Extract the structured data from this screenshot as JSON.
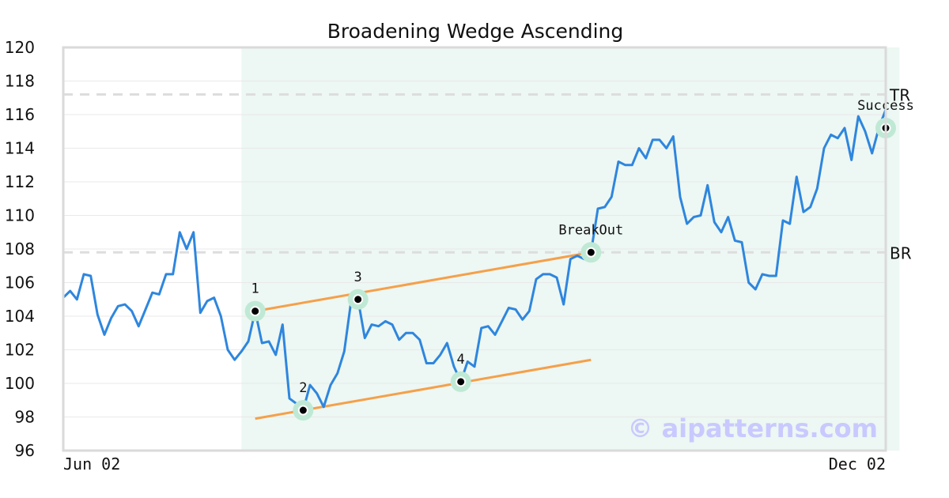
{
  "chart_data": {
    "type": "line",
    "title": "Broadening Wedge Ascending",
    "xlabel": "",
    "ylabel": "",
    "ylim": [
      96,
      120
    ],
    "yticks": [
      96,
      98,
      100,
      102,
      104,
      106,
      108,
      110,
      112,
      114,
      116,
      118,
      120
    ],
    "xtick_labels": [
      "Jun 02",
      "Dec 02"
    ],
    "grid": "horizontal",
    "colors": {
      "price": "#2e86de",
      "trendline": "#f5a04a",
      "highlight": "#edf7f3",
      "marker_halo": "#bfe9d5",
      "reference_line": "#dddddd",
      "watermark": "#c9c9ff"
    },
    "series": [
      {
        "values": [
          105.1,
          105.5,
          105.0,
          106.5,
          106.4,
          104.1,
          102.9,
          103.9,
          104.6,
          104.7,
          104.3,
          103.4,
          104.4,
          105.4,
          105.3,
          106.5,
          106.5,
          109.0,
          108.0,
          109.0,
          104.2,
          104.9,
          105.1,
          104.0,
          102.0,
          101.4,
          101.9,
          102.5,
          104.3,
          102.4,
          102.5,
          101.7,
          103.5,
          99.1,
          98.8,
          98.4,
          99.9,
          99.4,
          98.6,
          99.9,
          100.6,
          101.9,
          104.9,
          105.0,
          102.7,
          103.5,
          103.4,
          103.7,
          103.5,
          102.6,
          103.0,
          103.0,
          102.6,
          101.2,
          101.2,
          101.7,
          102.4,
          101.0,
          100.1,
          101.3,
          101.0,
          103.3,
          103.4,
          102.9,
          103.7,
          104.5,
          104.4,
          103.8,
          104.3,
          106.2,
          106.5,
          106.5,
          106.3,
          104.7,
          107.4,
          107.6,
          107.4,
          107.8,
          110.4,
          110.5,
          111.1,
          113.2,
          113.0,
          113.0,
          114.0,
          113.4,
          114.5,
          114.5,
          114.0,
          114.7,
          111.1,
          109.5,
          109.9,
          110.0,
          111.8,
          109.6,
          109.0,
          109.9,
          108.5,
          108.4,
          106.0,
          105.6,
          106.5,
          106.4,
          106.4,
          109.7,
          109.5,
          112.3,
          110.2,
          110.5,
          111.6,
          114.0,
          114.8,
          114.6,
          115.2,
          113.3,
          115.9,
          115.0,
          113.7,
          115.2,
          116.3
        ]
      }
    ],
    "highlight_range": [
      26,
      122
    ],
    "trendlines": [
      {
        "from": [
          28,
          104.3
        ],
        "to": [
          77,
          107.8
        ]
      },
      {
        "from": [
          28,
          97.9
        ],
        "to": [
          77,
          101.4
        ]
      }
    ],
    "reference_lines": [
      {
        "label": "TR",
        "value": 117.2
      },
      {
        "label": "BR",
        "value": 107.8
      }
    ],
    "points": [
      {
        "label": "1",
        "x": 28,
        "y": 104.3
      },
      {
        "label": "2",
        "x": 35,
        "y": 98.4
      },
      {
        "label": "3",
        "x": 43,
        "y": 105.0
      },
      {
        "label": "4",
        "x": 58,
        "y": 100.1
      },
      {
        "label": "BreakOut",
        "x": 77,
        "y": 107.8
      },
      {
        "label": "Success",
        "x": 120,
        "y": 115.2
      }
    ],
    "watermark": "© aipatterns.com"
  }
}
